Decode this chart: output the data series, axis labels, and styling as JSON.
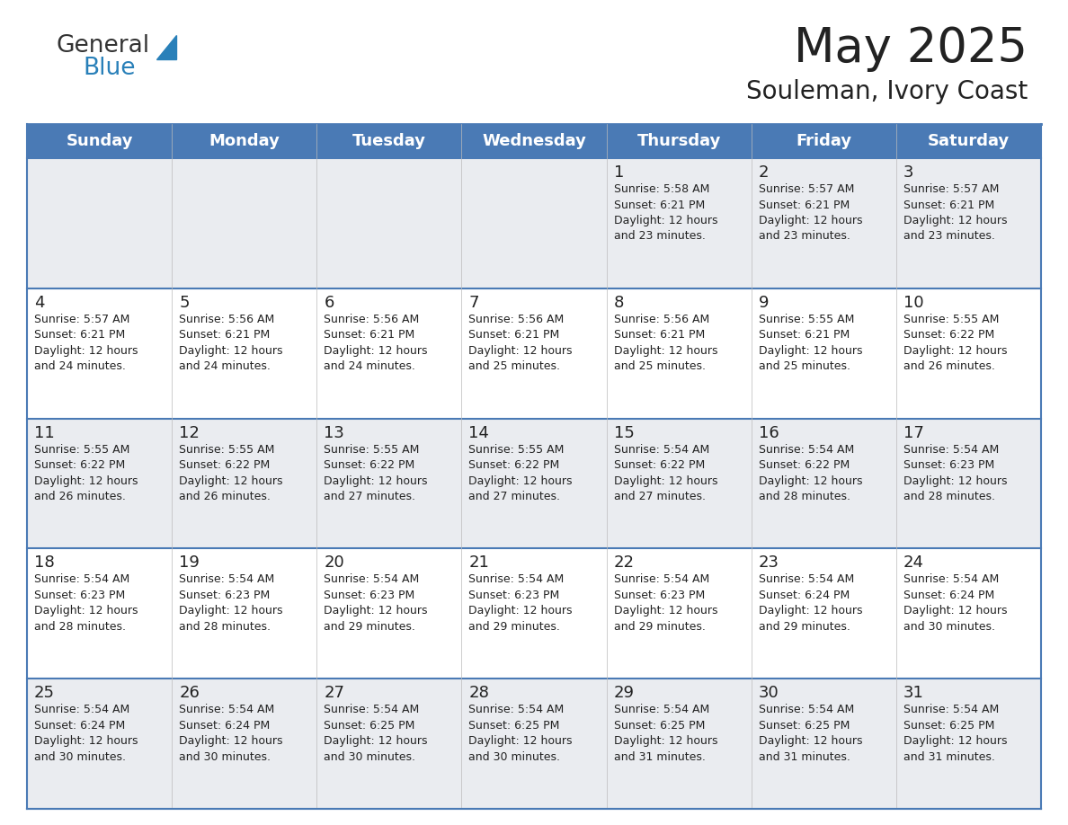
{
  "title": "May 2025",
  "subtitle": "Souleman, Ivory Coast",
  "days_of_week": [
    "Sunday",
    "Monday",
    "Tuesday",
    "Wednesday",
    "Thursday",
    "Friday",
    "Saturday"
  ],
  "header_bg": "#4a7ab5",
  "header_text": "#FFFFFF",
  "row_bg_light": "#EAECF0",
  "row_bg_white": "#FFFFFF",
  "border_color": "#4a7ab5",
  "row_border_color": "#4a7ab5",
  "text_color": "#222222",
  "cell_data": [
    [
      "",
      "",
      "",
      "",
      "1\nSunrise: 5:58 AM\nSunset: 6:21 PM\nDaylight: 12 hours\nand 23 minutes.",
      "2\nSunrise: 5:57 AM\nSunset: 6:21 PM\nDaylight: 12 hours\nand 23 minutes.",
      "3\nSunrise: 5:57 AM\nSunset: 6:21 PM\nDaylight: 12 hours\nand 23 minutes."
    ],
    [
      "4\nSunrise: 5:57 AM\nSunset: 6:21 PM\nDaylight: 12 hours\nand 24 minutes.",
      "5\nSunrise: 5:56 AM\nSunset: 6:21 PM\nDaylight: 12 hours\nand 24 minutes.",
      "6\nSunrise: 5:56 AM\nSunset: 6:21 PM\nDaylight: 12 hours\nand 24 minutes.",
      "7\nSunrise: 5:56 AM\nSunset: 6:21 PM\nDaylight: 12 hours\nand 25 minutes.",
      "8\nSunrise: 5:56 AM\nSunset: 6:21 PM\nDaylight: 12 hours\nand 25 minutes.",
      "9\nSunrise: 5:55 AM\nSunset: 6:21 PM\nDaylight: 12 hours\nand 25 minutes.",
      "10\nSunrise: 5:55 AM\nSunset: 6:22 PM\nDaylight: 12 hours\nand 26 minutes."
    ],
    [
      "11\nSunrise: 5:55 AM\nSunset: 6:22 PM\nDaylight: 12 hours\nand 26 minutes.",
      "12\nSunrise: 5:55 AM\nSunset: 6:22 PM\nDaylight: 12 hours\nand 26 minutes.",
      "13\nSunrise: 5:55 AM\nSunset: 6:22 PM\nDaylight: 12 hours\nand 27 minutes.",
      "14\nSunrise: 5:55 AM\nSunset: 6:22 PM\nDaylight: 12 hours\nand 27 minutes.",
      "15\nSunrise: 5:54 AM\nSunset: 6:22 PM\nDaylight: 12 hours\nand 27 minutes.",
      "16\nSunrise: 5:54 AM\nSunset: 6:22 PM\nDaylight: 12 hours\nand 28 minutes.",
      "17\nSunrise: 5:54 AM\nSunset: 6:23 PM\nDaylight: 12 hours\nand 28 minutes."
    ],
    [
      "18\nSunrise: 5:54 AM\nSunset: 6:23 PM\nDaylight: 12 hours\nand 28 minutes.",
      "19\nSunrise: 5:54 AM\nSunset: 6:23 PM\nDaylight: 12 hours\nand 28 minutes.",
      "20\nSunrise: 5:54 AM\nSunset: 6:23 PM\nDaylight: 12 hours\nand 29 minutes.",
      "21\nSunrise: 5:54 AM\nSunset: 6:23 PM\nDaylight: 12 hours\nand 29 minutes.",
      "22\nSunrise: 5:54 AM\nSunset: 6:23 PM\nDaylight: 12 hours\nand 29 minutes.",
      "23\nSunrise: 5:54 AM\nSunset: 6:24 PM\nDaylight: 12 hours\nand 29 minutes.",
      "24\nSunrise: 5:54 AM\nSunset: 6:24 PM\nDaylight: 12 hours\nand 30 minutes."
    ],
    [
      "25\nSunrise: 5:54 AM\nSunset: 6:24 PM\nDaylight: 12 hours\nand 30 minutes.",
      "26\nSunrise: 5:54 AM\nSunset: 6:24 PM\nDaylight: 12 hours\nand 30 minutes.",
      "27\nSunrise: 5:54 AM\nSunset: 6:25 PM\nDaylight: 12 hours\nand 30 minutes.",
      "28\nSunrise: 5:54 AM\nSunset: 6:25 PM\nDaylight: 12 hours\nand 30 minutes.",
      "29\nSunrise: 5:54 AM\nSunset: 6:25 PM\nDaylight: 12 hours\nand 31 minutes.",
      "30\nSunrise: 5:54 AM\nSunset: 6:25 PM\nDaylight: 12 hours\nand 31 minutes.",
      "31\nSunrise: 5:54 AM\nSunset: 6:25 PM\nDaylight: 12 hours\nand 31 minutes."
    ]
  ],
  "logo_color1": "#333333",
  "logo_color2": "#2980B9",
  "logo_triangle_color": "#2980B9",
  "fig_width": 11.88,
  "fig_height": 9.18,
  "dpi": 100
}
